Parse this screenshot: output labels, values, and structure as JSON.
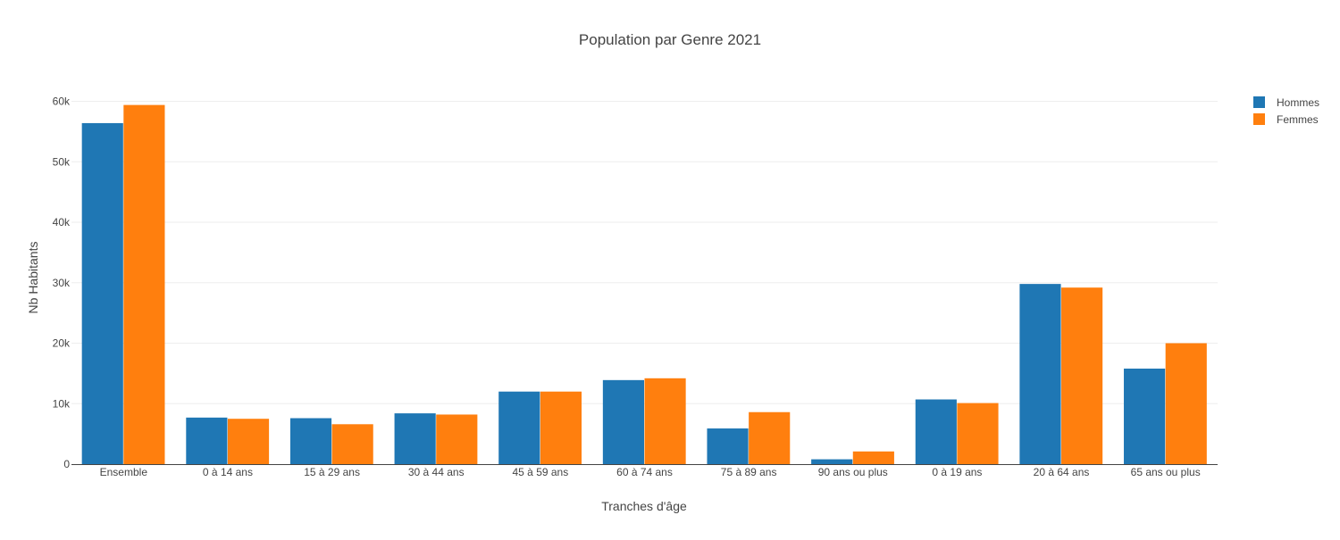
{
  "chart_data": {
    "type": "bar",
    "title": "Population par Genre 2021",
    "xlabel": "Tranches d'âge",
    "ylabel": "Nb Habitants",
    "categories": [
      "Ensemble",
      "0 à 14 ans",
      "15 à 29 ans",
      "30 à 44 ans",
      "45 à 59 ans",
      "60 à 74 ans",
      "75 à 89 ans",
      "90 ans ou plus",
      "0 à 19 ans",
      "20 à 64 ans",
      "65 ans ou plus"
    ],
    "series": [
      {
        "name": "Hommes",
        "color": "#1f77b4",
        "values": [
          56400,
          7700,
          7600,
          8400,
          12000,
          13900,
          5900,
          800,
          10700,
          29800,
          15800
        ]
      },
      {
        "name": "Femmes",
        "color": "#ff7f0e",
        "values": [
          59400,
          7500,
          6600,
          8200,
          12000,
          14200,
          8600,
          2100,
          10100,
          29200,
          20000
        ]
      }
    ],
    "ylim": [
      0,
      62000
    ],
    "yticks": [
      0,
      10000,
      20000,
      30000,
      40000,
      50000,
      60000
    ],
    "ytick_labels": [
      "0",
      "10k",
      "20k",
      "30k",
      "40k",
      "50k",
      "60k"
    ],
    "grid": true,
    "legend_position": "top-right"
  }
}
